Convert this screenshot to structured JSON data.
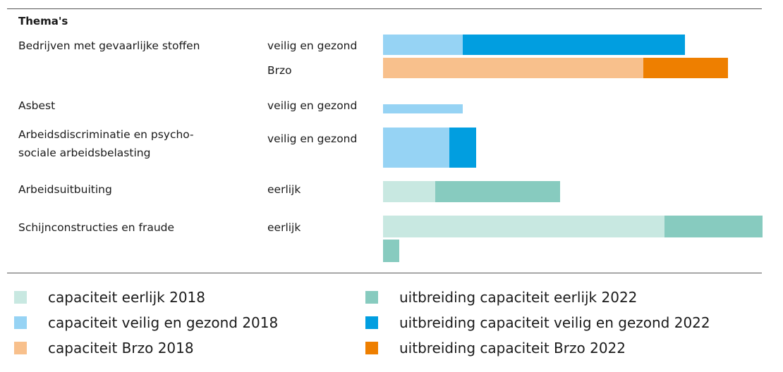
{
  "chart_data": {
    "type": "bar",
    "orientation": "horizontal",
    "stacked": true,
    "heading": "Thema's",
    "colors": {
      "eerlijk_2018": "#c8e8e1",
      "eerlijk_2022": "#87cbbf",
      "veilig_2018": "#96d3f4",
      "veilig_2022": "#019ee0",
      "brzo_2018": "#f8c08c",
      "brzo_2022": "#ee7f00"
    },
    "rows": [
      {
        "theme": "Bedrijven met gevaarlijke stoffen",
        "category": "veilig en gezond",
        "segments": [
          {
            "key": "veilig_2018",
            "value": 113
          },
          {
            "key": "veilig_2022",
            "value": 315
          }
        ]
      },
      {
        "theme": "",
        "category": "Brzo",
        "segments": [
          {
            "key": "brzo_2018",
            "value": 369
          },
          {
            "key": "brzo_2022",
            "value": 120
          }
        ]
      },
      {
        "theme": "Asbest",
        "category": "veilig en gezond",
        "segments": [
          {
            "key": "veilig_2018",
            "value": 113
          }
        ]
      },
      {
        "theme": "Arbeidsdiscriminatie en psycho-\nsociale arbeidsbelasting",
        "category": "veilig en gezond",
        "segments": [
          {
            "key": "veilig_2018",
            "value": 94
          },
          {
            "key": "veilig_2022",
            "value": 38
          }
        ]
      },
      {
        "theme": "Arbeidsuitbuiting",
        "category": "eerlijk",
        "segments": [
          {
            "key": "eerlijk_2018",
            "value": 74
          },
          {
            "key": "eerlijk_2022",
            "value": 177
          }
        ]
      },
      {
        "theme": "Schijnconstructies en fraude",
        "category": "eerlijk",
        "segments": [
          {
            "key": "eerlijk_2018",
            "value": 399
          },
          {
            "key": "eerlijk_2022",
            "value": 139
          }
        ]
      },
      {
        "theme": "",
        "category": "",
        "segments": [
          {
            "key": "eerlijk_2022",
            "value": 23
          }
        ]
      }
    ],
    "legend": [
      {
        "key": "eerlijk_2018",
        "label": "capaciteit eerlijk 2018"
      },
      {
        "key": "eerlijk_2022",
        "label": "uitbreiding capaciteit eerlijk 2022"
      },
      {
        "key": "veilig_2018",
        "label": "capaciteit veilig en gezond 2018"
      },
      {
        "key": "veilig_2022",
        "label": "uitbreiding capaciteit veilig en gezond 2022"
      },
      {
        "key": "brzo_2018",
        "label": "capaciteit Brzo 2018"
      },
      {
        "key": "brzo_2022",
        "label": "uitbreiding capaciteit Brzo 2022"
      }
    ]
  }
}
